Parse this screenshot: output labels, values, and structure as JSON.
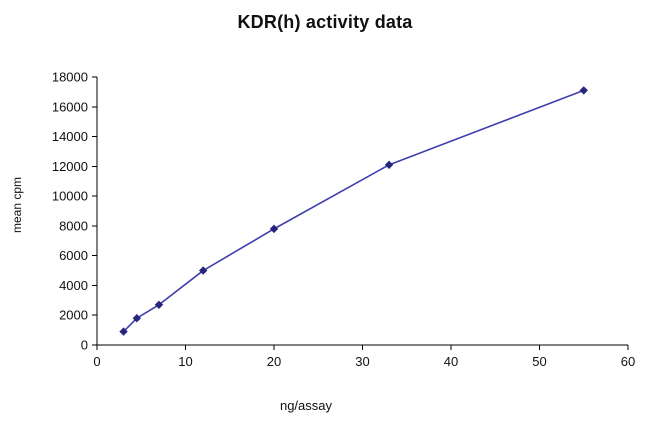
{
  "chart_data": {
    "type": "line",
    "title": "KDR(h) activity data",
    "xlabel": "ng/assay",
    "ylabel": "mean cpm",
    "x": [
      3,
      4.5,
      7,
      12,
      20,
      33,
      55
    ],
    "y": [
      900,
      1800,
      2700,
      5000,
      7800,
      12100,
      17100
    ],
    "xlim": [
      0,
      60
    ],
    "ylim": [
      0,
      18000
    ],
    "x_ticks": [
      0,
      10,
      20,
      30,
      40,
      50,
      60
    ],
    "y_ticks": [
      0,
      2000,
      4000,
      6000,
      8000,
      10000,
      12000,
      14000,
      16000,
      18000
    ],
    "grid": false,
    "legend": false,
    "line_color": "#3f3fae",
    "marker": "diamond",
    "marker_color": "#26267c",
    "axis_color": "#000000"
  }
}
